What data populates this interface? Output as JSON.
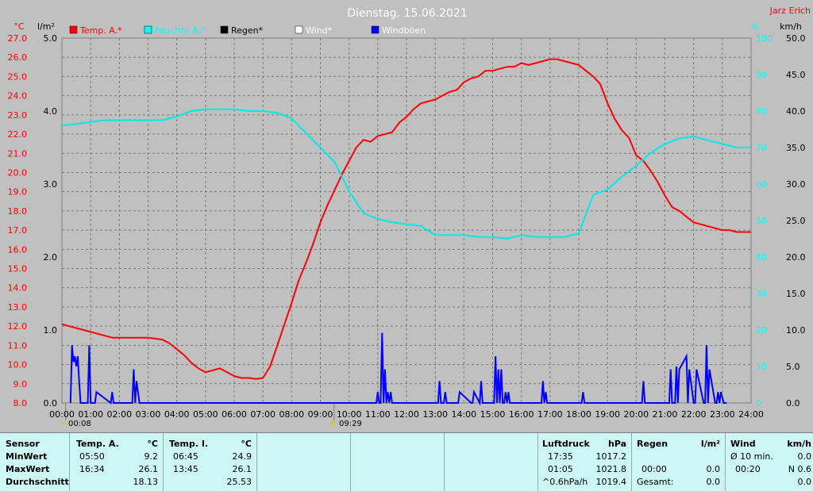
{
  "header": {
    "title": "Dienstag, 15.06.2021",
    "author": "Jarz Erich"
  },
  "chart_data": {
    "type": "line",
    "title": "Dienstag, 15.06.2021",
    "axes": {
      "temp": {
        "unit": "°C",
        "range": [
          8.0,
          27.0
        ],
        "ticks": [
          "8.0",
          "9.0",
          "10.0",
          "11.0",
          "12.0",
          "13.0",
          "14.0",
          "15.0",
          "16.0",
          "17.0",
          "18.0",
          "19.0",
          "20.0",
          "21.0",
          "22.0",
          "23.0",
          "24.0",
          "25.0",
          "26.0",
          "27.0"
        ]
      },
      "rain": {
        "unit": "l/m²",
        "range": [
          0,
          5
        ],
        "ticks": [
          "0.0",
          "1.0",
          "2.0",
          "3.0",
          "4.0",
          "5.0"
        ]
      },
      "humidity": {
        "unit": "%",
        "range": [
          0,
          100
        ],
        "ticks": [
          "0",
          "10",
          "20",
          "30",
          "40",
          "50",
          "60",
          "70",
          "80",
          "90",
          "100"
        ]
      },
      "wind": {
        "unit": "km/h",
        "range": [
          0,
          50
        ],
        "ticks": [
          "0.0",
          "5.0",
          "10.0",
          "15.0",
          "20.0",
          "25.0",
          "30.0",
          "35.0",
          "40.0",
          "45.0",
          "50.0"
        ]
      }
    },
    "x_ticks": [
      "00:00",
      "01:00",
      "02:00",
      "03:00",
      "04:00",
      "05:00",
      "06:00",
      "07:00",
      "08:00",
      "09:00",
      "10:00",
      "11:00",
      "12:00",
      "13:00",
      "14:00",
      "15:00",
      "16:00",
      "17:00",
      "18:00",
      "19:00",
      "20:00",
      "21:00",
      "22:00",
      "23:00",
      "24:00"
    ],
    "grid": true,
    "legend": [
      {
        "label": "Temp. A.*",
        "color": "#ff0000"
      },
      {
        "label": "Feuchte A.*",
        "color": "#00ffff"
      },
      {
        "label": "Regen*",
        "color": "#000000"
      },
      {
        "label": "Wind*",
        "color": "#ffffff"
      },
      {
        "label": "Windböen",
        "color": "#0000ff"
      }
    ],
    "markers": [
      {
        "time": "00:08",
        "hour": 0.13
      },
      {
        "time": "09:29",
        "hour": 9.48
      }
    ],
    "series": [
      {
        "name": "Temp. A.*",
        "color": "#ff0000",
        "axis": "temp",
        "x": [
          0,
          0.25,
          0.5,
          0.75,
          1,
          1.25,
          1.5,
          1.75,
          2,
          2.5,
          3,
          3.5,
          3.75,
          4,
          4.25,
          4.5,
          4.75,
          5,
          5.25,
          5.5,
          5.75,
          6,
          6.25,
          6.5,
          6.75,
          7,
          7.25,
          7.5,
          7.75,
          8,
          8.25,
          8.5,
          8.75,
          9,
          9.25,
          9.5,
          9.75,
          10,
          10.25,
          10.5,
          10.75,
          11,
          11.25,
          11.5,
          11.75,
          12,
          12.25,
          12.5,
          12.75,
          13,
          13.25,
          13.5,
          13.75,
          14,
          14.25,
          14.5,
          14.75,
          15,
          15.25,
          15.5,
          15.75,
          16,
          16.25,
          16.5,
          16.75,
          17,
          17.25,
          17.5,
          17.75,
          18,
          18.25,
          18.5,
          18.75,
          19,
          19.25,
          19.5,
          19.75,
          20,
          20.25,
          20.5,
          20.75,
          21,
          21.25,
          21.5,
          21.75,
          22,
          22.25,
          22.5,
          22.75,
          23,
          23.25,
          23.5,
          23.75,
          24
        ],
        "y": [
          12.1,
          12.0,
          11.9,
          11.8,
          11.7,
          11.6,
          11.5,
          11.4,
          11.4,
          11.4,
          11.4,
          11.3,
          11.1,
          10.8,
          10.5,
          10.1,
          9.8,
          9.6,
          9.7,
          9.8,
          9.6,
          9.4,
          9.3,
          9.3,
          9.25,
          9.3,
          9.9,
          11.0,
          12.1,
          13.2,
          14.4,
          15.3,
          16.3,
          17.4,
          18.3,
          19.1,
          19.9,
          20.6,
          21.3,
          21.7,
          21.6,
          21.9,
          22.0,
          22.1,
          22.6,
          22.9,
          23.3,
          23.6,
          23.7,
          23.8,
          24.0,
          24.2,
          24.3,
          24.7,
          24.9,
          25.0,
          25.3,
          25.3,
          25.4,
          25.5,
          25.5,
          25.7,
          25.6,
          25.7,
          25.8,
          25.9,
          25.9,
          25.8,
          25.7,
          25.6,
          25.3,
          25.0,
          24.6,
          23.6,
          22.8,
          22.2,
          21.8,
          20.9,
          20.6,
          20.1,
          19.5,
          18.8,
          18.2,
          18.0,
          17.7,
          17.4,
          17.3,
          17.2,
          17.1,
          17.0,
          17.0,
          16.9,
          16.9,
          16.9
        ]
      },
      {
        "name": "Feuchte A.*",
        "color": "#00e8e8",
        "axis": "humidity",
        "x": [
          0,
          0.5,
          1,
          1.5,
          2,
          2.5,
          3,
          3.5,
          4,
          4.5,
          5,
          5.5,
          6,
          6.5,
          7,
          7.5,
          8,
          8.5,
          9,
          9.5,
          10,
          10.5,
          11,
          11.5,
          12,
          12.5,
          13,
          13.5,
          14,
          14.5,
          15,
          15.5,
          16,
          16.5,
          17,
          17.5,
          18,
          18.5,
          19,
          19.5,
          20,
          20.5,
          21,
          21.5,
          22,
          22.5,
          23,
          23.5,
          24
        ],
        "y": [
          76,
          76.5,
          77,
          77.5,
          77.5,
          77.5,
          77.5,
          77.5,
          78.5,
          80,
          80.5,
          80.5,
          80.5,
          80,
          80,
          79.5,
          78,
          74,
          70,
          66,
          58,
          52,
          50.5,
          49.5,
          49,
          48.5,
          46,
          46,
          46,
          45.5,
          45.5,
          45,
          46,
          45.5,
          45.5,
          45.5,
          46.5,
          57,
          58.5,
          62,
          65,
          68.5,
          71,
          72.5,
          73,
          72,
          71,
          70,
          70
        ]
      },
      {
        "name": "Windböen",
        "color": "#0000ff",
        "axis": "wind",
        "type": "spikes",
        "x": [
          0.3,
          0.35,
          0.4,
          0.45,
          0.5,
          0.55,
          0.6,
          0.65,
          0.9,
          0.95,
          1.0,
          1.15,
          1.2,
          1.7,
          1.75,
          1.8,
          2.45,
          2.5,
          2.55,
          2.6,
          2.65,
          2.7,
          10.95,
          11.0,
          11.05,
          11.1,
          11.15,
          11.2,
          11.25,
          11.3,
          11.35,
          11.4,
          11.45,
          11.5,
          11.55,
          11.6,
          13.1,
          13.15,
          13.2,
          13.3,
          13.35,
          13.4,
          13.8,
          13.85,
          14.25,
          14.3,
          14.35,
          14.55,
          14.6,
          14.65,
          15.05,
          15.1,
          15.15,
          15.2,
          15.25,
          15.3,
          15.35,
          15.4,
          15.45,
          15.5,
          15.55,
          15.6,
          16.7,
          16.75,
          16.8,
          16.85,
          16.9,
          16.95,
          18.1,
          18.15,
          18.2,
          18.3,
          18.35,
          20.2,
          20.25,
          20.3,
          21.15,
          21.2,
          21.25,
          21.35,
          21.4,
          21.45,
          21.5,
          21.75,
          21.8,
          21.85,
          22.0,
          22.05,
          22.1,
          22.35,
          22.4,
          22.45,
          22.5,
          22.55,
          22.75,
          22.8,
          22.85,
          22.9,
          22.95,
          23.05,
          23.1,
          23.15
        ],
        "y": [
          0,
          7.9,
          5.6,
          6.4,
          5.0,
          6.4,
          3.0,
          0,
          0,
          7.9,
          0,
          0,
          1.5,
          0,
          1.5,
          0,
          0,
          4.6,
          0,
          3.0,
          1.5,
          0,
          0,
          1.5,
          0,
          0,
          9.6,
          0,
          4.6,
          0,
          1.5,
          0,
          1.5,
          0,
          0,
          0,
          0,
          3.0,
          0,
          0,
          1.5,
          0,
          0,
          1.5,
          0,
          0,
          1.5,
          0,
          3.0,
          0,
          0,
          6.4,
          0,
          4.6,
          0,
          4.6,
          0,
          0,
          1.5,
          0,
          1.5,
          0,
          0,
          3.0,
          0,
          1.5,
          0,
          0,
          0,
          1.5,
          0,
          0,
          0,
          0,
          3.0,
          0,
          0,
          4.6,
          0,
          0,
          5.0,
          0,
          4.6,
          6.4,
          0,
          4.6,
          0,
          0,
          4.6,
          0,
          0,
          7.9,
          0,
          4.6,
          0,
          0,
          1.5,
          0,
          1.5,
          0,
          0,
          0
        ]
      }
    ]
  },
  "stats": {
    "sensor": {
      "label": "Sensor",
      "min": "MinWert",
      "max": "MaxWert",
      "avg": "Durchschnitt"
    },
    "temp_a": {
      "header": "Temp. A.",
      "unit": "°C",
      "min_time": "05:50",
      "min_val": "9.2",
      "max_time": "16:34",
      "max_val": "26.1",
      "avg": "18.13"
    },
    "temp_i": {
      "header": "Temp. I.",
      "unit": "°C",
      "min_time": "06:45",
      "min_val": "24.9",
      "max_time": "13:45",
      "max_val": "26.1",
      "avg": "25.53"
    },
    "pressure": {
      "header": "Luftdruck",
      "unit": "hPa",
      "min_time": "17:35",
      "min_val": "1017.2",
      "max_time": "01:05",
      "max_val": "1021.8",
      "trend_label": "^0.6hPa/h",
      "trend_val": "1019.4"
    },
    "rain": {
      "header": "Regen",
      "unit": "l/m²",
      "max_time": "00:00",
      "max_val": "0.0",
      "total_label": "Gesamt:",
      "total_val": "0.0"
    },
    "wind": {
      "header": "Wind",
      "unit": "km/h",
      "avg10_label": "Ø 10 min.",
      "avg10_val": "0.0",
      "max_time": "00:20",
      "max_val": "N 0.6",
      "extra_val": "0.0"
    }
  }
}
